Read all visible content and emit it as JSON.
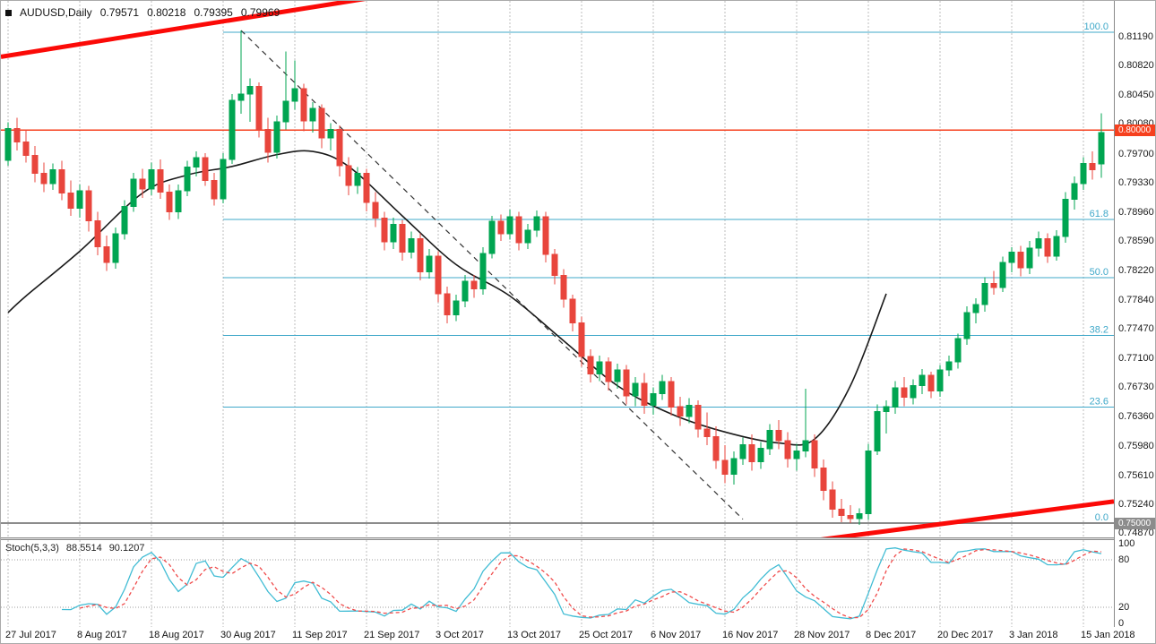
{
  "header": {
    "symbol": "AUDUSD,Daily",
    "open": "0.79571",
    "high": "0.80218",
    "low": "0.79395",
    "close": "0.79969"
  },
  "indicator": {
    "name": "Stoch(5,3,3)",
    "k_value": "88.5514",
    "d_value": "90.1207"
  },
  "chart_data": {
    "type": "candlestick",
    "title": "AUDUSD Daily",
    "scale": {
      "top": 0.81555,
      "bottom": 0.7483
    },
    "y_axis_labels": [
      "0.81190",
      "0.80820",
      "0.80450",
      "0.80080",
      "0.79700",
      "0.79330",
      "0.78960",
      "0.78590",
      "0.78220",
      "0.77840",
      "0.77470",
      "0.77100",
      "0.76730",
      "0.76360",
      "0.75980",
      "0.75610",
      "0.75240",
      "0.74870"
    ],
    "x_labels": [
      {
        "i": 0,
        "t": "27 Jul 2017"
      },
      {
        "i": 8,
        "t": "8 Aug 2017"
      },
      {
        "i": 16,
        "t": "18 Aug 2017"
      },
      {
        "i": 24,
        "t": "30 Aug 2017"
      },
      {
        "i": 32,
        "t": "11 Sep 2017"
      },
      {
        "i": 40,
        "t": "21 Sep 2017"
      },
      {
        "i": 48,
        "t": "3 Oct 2017"
      },
      {
        "i": 56,
        "t": "13 Oct 2017"
      },
      {
        "i": 64,
        "t": "25 Oct 2017"
      },
      {
        "i": 72,
        "t": "6 Nov 2017"
      },
      {
        "i": 80,
        "t": "16 Nov 2017"
      },
      {
        "i": 88,
        "t": "28 Nov 2017"
      },
      {
        "i": 96,
        "t": "8 Dec 2017"
      },
      {
        "i": 104,
        "t": "20 Dec 2017"
      },
      {
        "i": 112,
        "t": "3 Jan 2018"
      },
      {
        "i": 120,
        "t": "15 Jan 2018"
      }
    ],
    "candles": [
      [
        0.7962,
        0.801,
        0.7955,
        0.8002
      ],
      [
        0.8002,
        0.8016,
        0.7974,
        0.7985
      ],
      [
        0.7985,
        0.8001,
        0.7959,
        0.7968
      ],
      [
        0.7968,
        0.798,
        0.7934,
        0.7945
      ],
      [
        0.7945,
        0.7959,
        0.7921,
        0.7932
      ],
      [
        0.7932,
        0.7958,
        0.7924,
        0.795
      ],
      [
        0.795,
        0.7961,
        0.7911,
        0.792
      ],
      [
        0.792,
        0.7936,
        0.7891,
        0.7901
      ],
      [
        0.7901,
        0.7931,
        0.7889,
        0.7923
      ],
      [
        0.7923,
        0.7929,
        0.7871,
        0.7885
      ],
      [
        0.7885,
        0.7896,
        0.7841,
        0.7852
      ],
      [
        0.7852,
        0.7866,
        0.7821,
        0.7832
      ],
      [
        0.7832,
        0.7876,
        0.7824,
        0.7868
      ],
      [
        0.7868,
        0.7911,
        0.7861,
        0.7903
      ],
      [
        0.7903,
        0.7946,
        0.7896,
        0.7938
      ],
      [
        0.7938,
        0.7951,
        0.7914,
        0.7925
      ],
      [
        0.7925,
        0.7959,
        0.7917,
        0.795
      ],
      [
        0.795,
        0.7963,
        0.7913,
        0.7921
      ],
      [
        0.7921,
        0.7931,
        0.7886,
        0.7896
      ],
      [
        0.7896,
        0.7931,
        0.7887,
        0.7923
      ],
      [
        0.7923,
        0.7961,
        0.7916,
        0.7953
      ],
      [
        0.7953,
        0.7973,
        0.7941,
        0.7965
      ],
      [
        0.7965,
        0.7971,
        0.7929,
        0.7936
      ],
      [
        0.7936,
        0.7946,
        0.7904,
        0.7913
      ],
      [
        0.7913,
        0.7971,
        0.7907,
        0.7963
      ],
      [
        0.7963,
        0.8046,
        0.7957,
        0.8038
      ],
      [
        0.8038,
        0.8127,
        0.8021,
        0.8046
      ],
      [
        0.8046,
        0.8066,
        0.8011,
        0.8056
      ],
      [
        0.8056,
        0.8061,
        0.7991,
        0.8001
      ],
      [
        0.8001,
        0.8016,
        0.7959,
        0.7972
      ],
      [
        0.7972,
        0.8019,
        0.7964,
        0.8011
      ],
      [
        0.8011,
        0.81,
        0.8001,
        0.8037
      ],
      [
        0.8037,
        0.8089,
        0.8026,
        0.8053
      ],
      [
        0.8053,
        0.8059,
        0.7999,
        0.8012
      ],
      [
        0.8012,
        0.8036,
        0.7997,
        0.8028
      ],
      [
        0.8028,
        0.8033,
        0.7977,
        0.799
      ],
      [
        0.799,
        0.8009,
        0.7974,
        0.8001
      ],
      [
        0.8001,
        0.8006,
        0.7941,
        0.7955
      ],
      [
        0.7955,
        0.7966,
        0.7917,
        0.793
      ],
      [
        0.793,
        0.7953,
        0.7919,
        0.7945
      ],
      [
        0.7945,
        0.7951,
        0.7897,
        0.7908
      ],
      [
        0.7908,
        0.7921,
        0.7877,
        0.7888
      ],
      [
        0.7888,
        0.7896,
        0.7847,
        0.7858
      ],
      [
        0.7858,
        0.7889,
        0.7849,
        0.788
      ],
      [
        0.788,
        0.7886,
        0.7834,
        0.7845
      ],
      [
        0.7845,
        0.7871,
        0.7837,
        0.7862
      ],
      [
        0.7862,
        0.7869,
        0.7809,
        0.782
      ],
      [
        0.782,
        0.7849,
        0.7811,
        0.784
      ],
      [
        0.784,
        0.7846,
        0.7781,
        0.7792
      ],
      [
        0.7792,
        0.7801,
        0.7754,
        0.7765
      ],
      [
        0.7765,
        0.7791,
        0.7757,
        0.7783
      ],
      [
        0.7783,
        0.7816,
        0.7775,
        0.7808
      ],
      [
        0.7808,
        0.7816,
        0.7787,
        0.7798
      ],
      [
        0.7798,
        0.7851,
        0.7791,
        0.7843
      ],
      [
        0.7843,
        0.7891,
        0.7837,
        0.7884
      ],
      [
        0.7884,
        0.7893,
        0.7859,
        0.7868
      ],
      [
        0.7868,
        0.7899,
        0.7861,
        0.789
      ],
      [
        0.789,
        0.7896,
        0.7847,
        0.7857
      ],
      [
        0.7857,
        0.7881,
        0.7849,
        0.7873
      ],
      [
        0.7873,
        0.7898,
        0.7864,
        0.789
      ],
      [
        0.789,
        0.7896,
        0.7832,
        0.7842
      ],
      [
        0.7842,
        0.7849,
        0.7804,
        0.7815
      ],
      [
        0.7815,
        0.7823,
        0.7774,
        0.7785
      ],
      [
        0.7785,
        0.7791,
        0.7744,
        0.7755
      ],
      [
        0.7755,
        0.7763,
        0.7699,
        0.7712
      ],
      [
        0.7712,
        0.7721,
        0.7679,
        0.769
      ],
      [
        0.769,
        0.7713,
        0.7681,
        0.7705
      ],
      [
        0.7705,
        0.7711,
        0.7669,
        0.768
      ],
      [
        0.768,
        0.7703,
        0.7671,
        0.7695
      ],
      [
        0.7695,
        0.7701,
        0.7651,
        0.7662
      ],
      [
        0.7662,
        0.7686,
        0.7649,
        0.7678
      ],
      [
        0.7678,
        0.7691,
        0.7639,
        0.765
      ],
      [
        0.765,
        0.7673,
        0.7638,
        0.7665
      ],
      [
        0.7665,
        0.7689,
        0.7657,
        0.768
      ],
      [
        0.768,
        0.7686,
        0.7637,
        0.7648
      ],
      [
        0.7648,
        0.7661,
        0.7624,
        0.7636
      ],
      [
        0.7636,
        0.7659,
        0.7627,
        0.765
      ],
      [
        0.765,
        0.7656,
        0.7609,
        0.762
      ],
      [
        0.762,
        0.7641,
        0.7599,
        0.761
      ],
      [
        0.761,
        0.7623,
        0.7569,
        0.758
      ],
      [
        0.758,
        0.7599,
        0.7551,
        0.7562
      ],
      [
        0.7562,
        0.7591,
        0.7549,
        0.7582
      ],
      [
        0.7582,
        0.7609,
        0.7574,
        0.76
      ],
      [
        0.76,
        0.7613,
        0.7567,
        0.7578
      ],
      [
        0.7578,
        0.7603,
        0.7569,
        0.7595
      ],
      [
        0.7595,
        0.7626,
        0.7587,
        0.7618
      ],
      [
        0.7618,
        0.7631,
        0.7594,
        0.7605
      ],
      [
        0.7605,
        0.7616,
        0.7571,
        0.7582
      ],
      [
        0.7582,
        0.7601,
        0.7567,
        0.7592
      ],
      [
        0.7592,
        0.7671,
        0.7584,
        0.7605
      ],
      [
        0.7605,
        0.7613,
        0.7559,
        0.757
      ],
      [
        0.757,
        0.7581,
        0.7529,
        0.7542
      ],
      [
        0.7542,
        0.7553,
        0.7507,
        0.7518
      ],
      [
        0.7518,
        0.7531,
        0.7501,
        0.751
      ],
      [
        0.751,
        0.7523,
        0.75,
        0.7506
      ],
      [
        0.7506,
        0.7519,
        0.7498,
        0.7512
      ],
      [
        0.7512,
        0.7601,
        0.7504,
        0.7592
      ],
      [
        0.7592,
        0.7651,
        0.7587,
        0.7642
      ],
      [
        0.7642,
        0.7656,
        0.7614,
        0.7648
      ],
      [
        0.7648,
        0.7681,
        0.7639,
        0.7672
      ],
      [
        0.7672,
        0.7686,
        0.7649,
        0.766
      ],
      [
        0.766,
        0.7683,
        0.7651,
        0.7675
      ],
      [
        0.7675,
        0.7696,
        0.7664,
        0.7688
      ],
      [
        0.7688,
        0.7693,
        0.7659,
        0.7668
      ],
      [
        0.7668,
        0.7701,
        0.7661,
        0.7695
      ],
      [
        0.7695,
        0.7713,
        0.7687,
        0.7705
      ],
      [
        0.7705,
        0.7741,
        0.7697,
        0.7735
      ],
      [
        0.7735,
        0.7776,
        0.7727,
        0.7768
      ],
      [
        0.7768,
        0.7786,
        0.7754,
        0.7778
      ],
      [
        0.7778,
        0.7813,
        0.7769,
        0.7805
      ],
      [
        0.7805,
        0.7821,
        0.7791,
        0.78
      ],
      [
        0.78,
        0.7839,
        0.7794,
        0.7832
      ],
      [
        0.7832,
        0.7851,
        0.7819,
        0.7845
      ],
      [
        0.7845,
        0.7853,
        0.7814,
        0.7825
      ],
      [
        0.7825,
        0.7859,
        0.7817,
        0.785
      ],
      [
        0.785,
        0.7871,
        0.7839,
        0.7862
      ],
      [
        0.7862,
        0.7869,
        0.7831,
        0.784
      ],
      [
        0.784,
        0.7873,
        0.7834,
        0.7865
      ],
      [
        0.7865,
        0.7921,
        0.7857,
        0.7912
      ],
      [
        0.7912,
        0.7941,
        0.7899,
        0.7932
      ],
      [
        0.7932,
        0.7966,
        0.7924,
        0.7958
      ],
      [
        0.7958,
        0.7973,
        0.7937,
        0.795
      ],
      [
        0.79571,
        0.80218,
        0.79395,
        0.79969
      ]
    ],
    "ma_points": [
      [
        0,
        0.7768
      ],
      [
        2,
        0.7789
      ],
      [
        8,
        0.7846
      ],
      [
        15,
        0.792
      ],
      [
        20,
        0.7943
      ],
      [
        25,
        0.7954
      ],
      [
        30,
        0.7969
      ],
      [
        34,
        0.7973
      ],
      [
        38,
        0.7954
      ],
      [
        44,
        0.7891
      ],
      [
        50,
        0.7829
      ],
      [
        56,
        0.7789
      ],
      [
        62,
        0.7732
      ],
      [
        68,
        0.7675
      ],
      [
        74,
        0.7639
      ],
      [
        80,
        0.7616
      ],
      [
        86,
        0.7602
      ],
      [
        90,
        0.7607
      ],
      [
        94,
        0.7675
      ],
      [
        98,
        0.7792
      ]
    ],
    "fib": {
      "start_index": 24,
      "low": 0.75,
      "high": 0.8125,
      "levels": [
        {
          "label": "100.0",
          "price": 0.8125
        },
        {
          "label": "61.8",
          "price": 0.78863
        },
        {
          "label": "50.0",
          "price": 0.78125
        },
        {
          "label": "38.2",
          "price": 0.77388
        },
        {
          "label": "23.6",
          "price": 0.76475
        },
        {
          "label": "0.0",
          "price": 0.75
        }
      ]
    },
    "hlines": [
      {
        "label": "0.80000",
        "price": 0.8,
        "color": "#f6401e",
        "width": 1.4
      },
      {
        "label": "0.75000",
        "price": 0.75,
        "color": "#8c8c8c",
        "width": 2
      }
    ],
    "trendlines": {
      "dashed": [
        [
          26,
          0.8127
        ],
        [
          82,
          0.7505
        ]
      ],
      "red_upper": [
        [
          0,
          0.8095
        ],
        [
          38,
          0.8164
        ]
      ],
      "red_lower": [
        [
          90,
          0.7478
        ],
        [
          129,
          0.7536
        ]
      ]
    },
    "stoch": {
      "levels": [
        80,
        20
      ],
      "axis_labels": [
        "100",
        "80",
        "20",
        "0"
      ]
    },
    "colors": {
      "bull": "#00a551",
      "bear": "#e8453c",
      "grid": "#bdbdbd",
      "fib": "#3fa8c9",
      "ma": "#1a1a1a",
      "trend_dashed": "#333333",
      "red_trend": "#fb0a07",
      "stoch_main": "#40bcd4",
      "stoch_signal": "#f04b4b",
      "axis_text": "#1a1a1a",
      "level_dots": "#9e9e9e"
    }
  }
}
